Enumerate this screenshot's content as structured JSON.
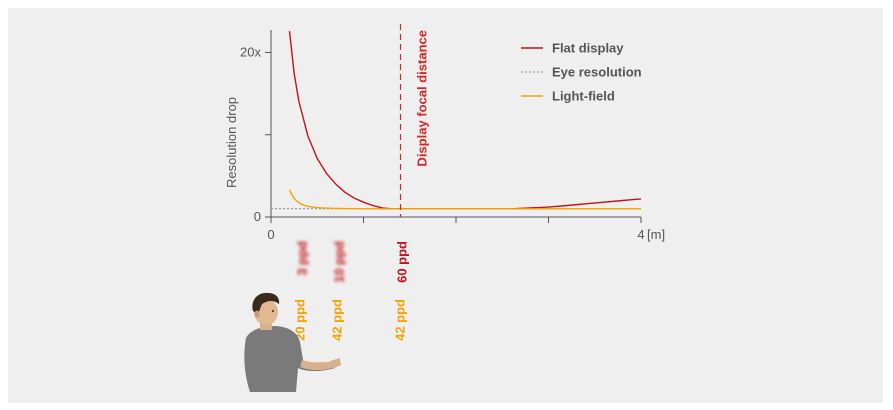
{
  "chart_data": {
    "type": "line",
    "title": "",
    "xlabel": "[m]",
    "ylabel": "Resolution drop",
    "xlim": [
      0,
      4
    ],
    "ylim": [
      0,
      22
    ],
    "x_ticks": [
      0,
      1,
      2,
      3,
      4
    ],
    "x_tick_labels": [
      "0",
      "",
      "",
      "",
      "4"
    ],
    "y_ticks": [
      0,
      10,
      20
    ],
    "y_tick_labels": [
      "0",
      "",
      "20x"
    ],
    "legend_position": "top-right",
    "colors": {
      "flat": "#c4121a",
      "eye": "#888888",
      "lightfield": "#f0a500",
      "focal": "#d62828",
      "ppd_flat": "#c4121a",
      "ppd_lightfield": "#f0a500",
      "panel_bg": "#efefef"
    },
    "series": [
      {
        "name": "Flat display",
        "style": "solid",
        "color": "#c4121a",
        "x": [
          0.2,
          0.25,
          0.3,
          0.4,
          0.5,
          0.6,
          0.7,
          0.8,
          0.9,
          1.0,
          1.1,
          1.2,
          1.3,
          1.4,
          1.6,
          1.8,
          2.0,
          2.2,
          2.4,
          2.6,
          2.8,
          3.0,
          3.2,
          3.4,
          3.6,
          3.8,
          4.0
        ],
        "y": [
          22.6,
          17.5,
          14.1,
          9.8,
          7.1,
          5.3,
          4.0,
          3.0,
          2.3,
          1.8,
          1.4,
          1.1,
          1.0,
          1.0,
          1.0,
          1.0,
          1.0,
          1.0,
          1.0,
          1.0,
          1.1,
          1.2,
          1.4,
          1.6,
          1.8,
          2.0,
          2.2
        ]
      },
      {
        "name": "Eye resolution",
        "style": "dotted",
        "color": "#888888",
        "x": [
          0.0,
          4.0
        ],
        "y": [
          1.0,
          1.0
        ]
      },
      {
        "name": "Light-field",
        "style": "solid",
        "color": "#f0a500",
        "x": [
          0.2,
          0.23,
          0.27,
          0.32,
          0.38,
          0.45,
          0.55,
          0.7,
          1.0,
          1.5,
          2.0,
          2.5,
          3.0,
          3.5,
          4.0
        ],
        "y": [
          3.3,
          2.6,
          2.0,
          1.6,
          1.35,
          1.2,
          1.1,
          1.05,
          1.0,
          1.0,
          1.0,
          1.0,
          1.0,
          1.0,
          1.0
        ]
      }
    ],
    "focal_line": {
      "x": 1.4,
      "label": "Display focal distance"
    },
    "ppd_labels": [
      {
        "x": 0.32,
        "text": "3 ppd",
        "color": "#c4121a",
        "row": "top",
        "blurred": true
      },
      {
        "x": 0.32,
        "text": "20 ppd",
        "color": "#f0a500",
        "row": "bottom",
        "blurred": false
      },
      {
        "x": 0.72,
        "text": "10 ppd",
        "color": "#c4121a",
        "row": "top",
        "blurred": true
      },
      {
        "x": 0.72,
        "text": "42 ppd",
        "color": "#f0a500",
        "row": "bottom",
        "blurred": false
      },
      {
        "x": 1.4,
        "text": "60 ppd",
        "color": "#c4121a",
        "row": "top",
        "blurred": false
      },
      {
        "x": 1.4,
        "text": "42 ppd",
        "color": "#f0a500",
        "row": "bottom",
        "blurred": false
      }
    ]
  }
}
